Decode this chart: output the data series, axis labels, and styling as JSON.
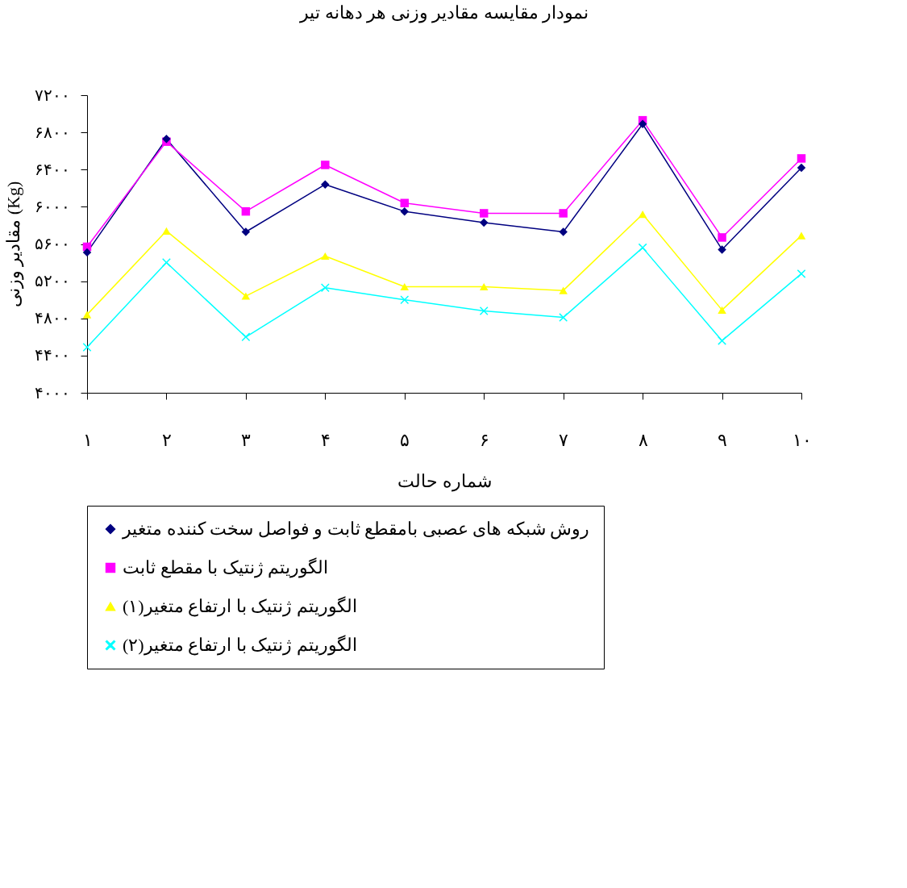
{
  "chart_data": {
    "type": "line",
    "title": "نمودار مقایسه مقادیر وزنی هر دهانه تیر",
    "xlabel": "شماره حالت",
    "ylabel": "مقادیر وزنی (Kg)",
    "categories": [
      "۱",
      "۲",
      "۳",
      "۴",
      "۵",
      "۶",
      "۷",
      "۸",
      "۹",
      "۱۰"
    ],
    "series": [
      {
        "name": "روش شبکه های عصبی بامقطع ثابت و فواصل سخت کننده متغیر",
        "color": "#000080",
        "marker": "diamond",
        "values": [
          5510,
          6730,
          5730,
          6240,
          5950,
          5830,
          5730,
          6890,
          5540,
          6420
        ]
      },
      {
        "name": "الگوریتم ژنتیک با مقطع ثابت",
        "color": "#ff00ff",
        "marker": "square",
        "values": [
          5570,
          6700,
          5950,
          6450,
          6040,
          5930,
          5930,
          6930,
          5670,
          6520
        ]
      },
      {
        "name": "الگوریتم ژنتیک با ارتفاع متغیر(۱)",
        "color": "#ffff00",
        "marker": "triangle",
        "values": [
          4840,
          5740,
          5040,
          5470,
          5140,
          5140,
          5100,
          5920,
          4890,
          5690
        ]
      },
      {
        "name": "الگوریتم ژنتیک با ارتفاع متغیر(۲)",
        "color": "#00ffff",
        "marker": "cross",
        "values": [
          4490,
          5400,
          4600,
          5130,
          5000,
          4880,
          4810,
          5560,
          4560,
          5280
        ]
      }
    ],
    "ylim": [
      4000,
      7200
    ],
    "yticks": [
      {
        "value": 4000,
        "label": "۴۰۰۰"
      },
      {
        "value": 4400,
        "label": "۴۴۰۰"
      },
      {
        "value": 4800,
        "label": "۴۸۰۰"
      },
      {
        "value": 5200,
        "label": "۵۲۰۰"
      },
      {
        "value": 5600,
        "label": "۵۶۰۰"
      },
      {
        "value": 6000,
        "label": "۶۰۰۰"
      },
      {
        "value": 6400,
        "label": "۶۴۰۰"
      },
      {
        "value": 6800,
        "label": "۶۸۰۰"
      },
      {
        "value": 7200,
        "label": "۷۲۰۰"
      }
    ],
    "grid": false,
    "legend": "bottom"
  }
}
